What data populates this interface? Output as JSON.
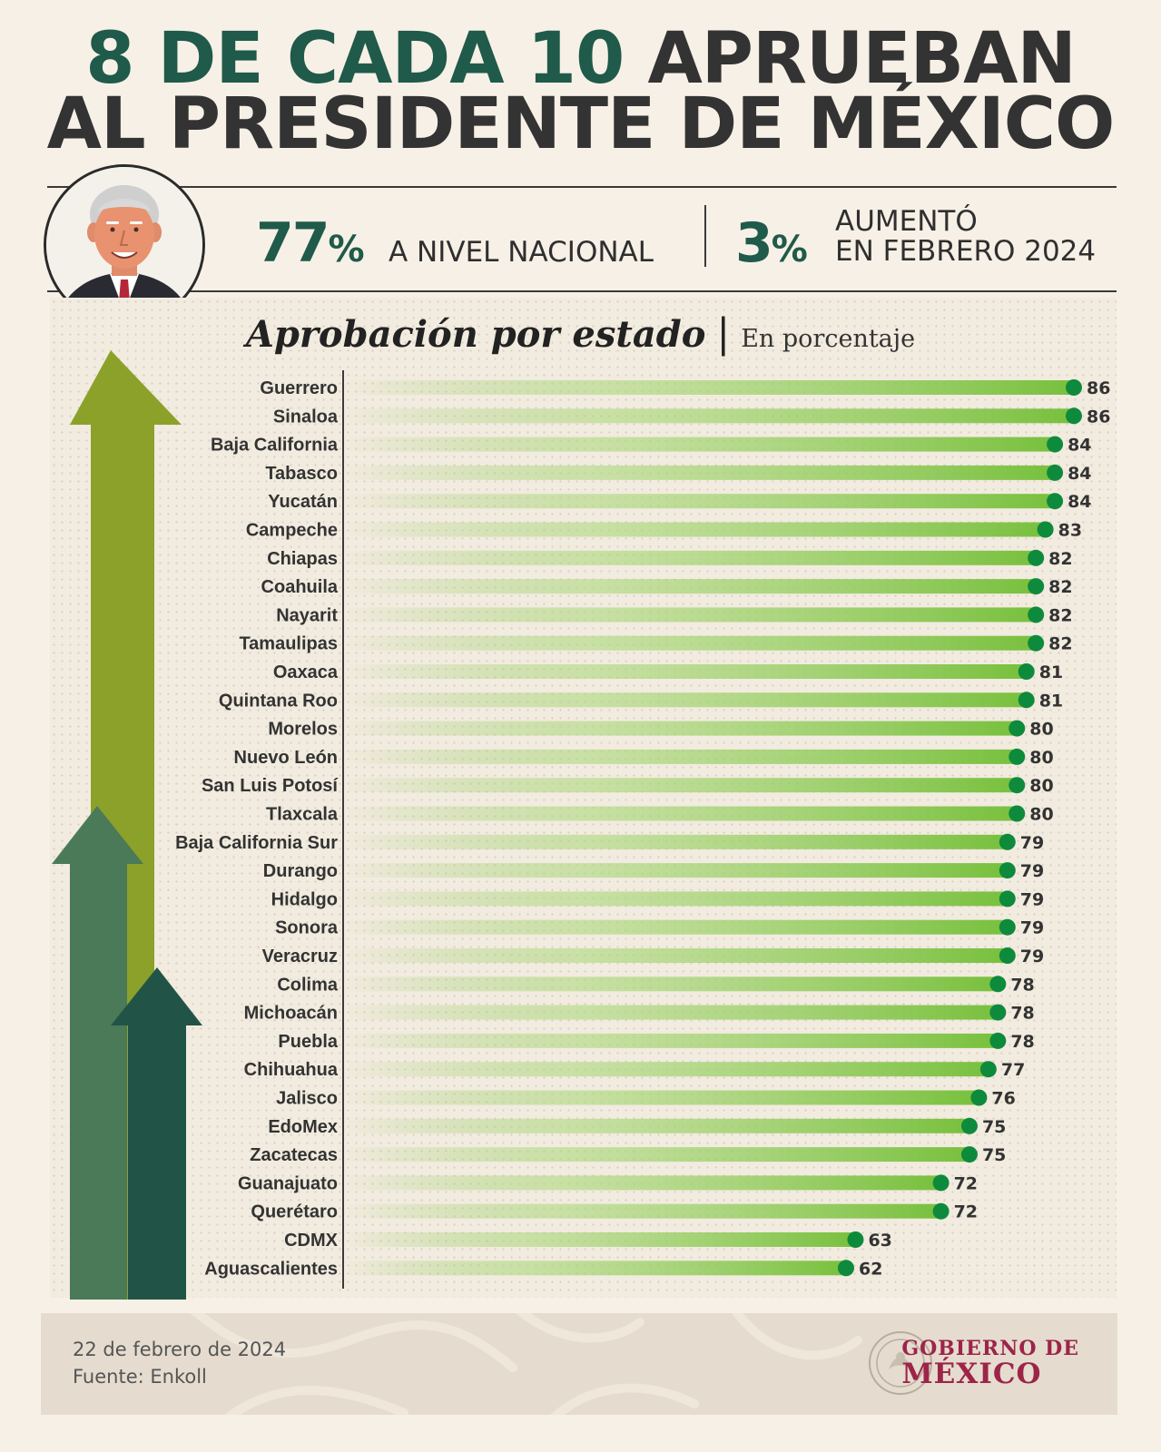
{
  "header": {
    "title_line1_green": "8 DE CADA 10",
    "title_line1_dark": "APRUEBAN",
    "title_line2": "AL PRESIDENTE DE MÉXICO"
  },
  "kpis": {
    "national_value": "77",
    "national_unit": "%",
    "national_label": "A NIVEL NACIONAL",
    "increase_value": "3",
    "increase_unit": "%",
    "increase_label_line1": "AUMENTÓ",
    "increase_label_line2": "EN FEBRERO 2024"
  },
  "chart_title": {
    "main": "Aprobación por estado",
    "separator": "|",
    "sub": "En porcentaje"
  },
  "colors": {
    "brand_green": "#1f5a4a",
    "bar_green": "#7dc242",
    "dot_green": "#0e8a3c",
    "arrow_olive": "#8ca12a",
    "arrow_mid": "#4b7a58",
    "arrow_dark": "#215447",
    "gov_red": "#9d2449"
  },
  "chart_data": {
    "type": "bar",
    "orientation": "horizontal",
    "categories": [
      "Guerrero",
      "Sinaloa",
      "Baja California",
      "Tabasco",
      "Yucatán",
      "Campeche",
      "Chiapas",
      "Coahuila",
      "Nayarit",
      "Tamaulipas",
      "Oaxaca",
      "Quintana Roo",
      "Morelos",
      "Nuevo León",
      "San Luis Potosí",
      "Tlaxcala",
      "Baja California Sur",
      "Durango",
      "Hidalgo",
      "Sonora",
      "Veracruz",
      "Colima",
      "Michoacán",
      "Puebla",
      "Chihuahua",
      "Jalisco",
      "EdoMex",
      "Zacatecas",
      "Guanajuato",
      "Querétaro",
      "CDMX",
      "Aguascalientes"
    ],
    "values": [
      86,
      86,
      84,
      84,
      84,
      83,
      82,
      82,
      82,
      82,
      81,
      81,
      80,
      80,
      80,
      80,
      79,
      79,
      79,
      79,
      79,
      78,
      78,
      78,
      77,
      76,
      75,
      75,
      72,
      72,
      63,
      62
    ],
    "xlim": [
      0,
      86
    ],
    "grid": false,
    "legend": "none"
  },
  "footer": {
    "date": "22 de febrero de 2024",
    "source": "Fuente: Enkoll",
    "gov_line1": "GOBIERNO DE",
    "gov_line2": "MÉXICO"
  }
}
